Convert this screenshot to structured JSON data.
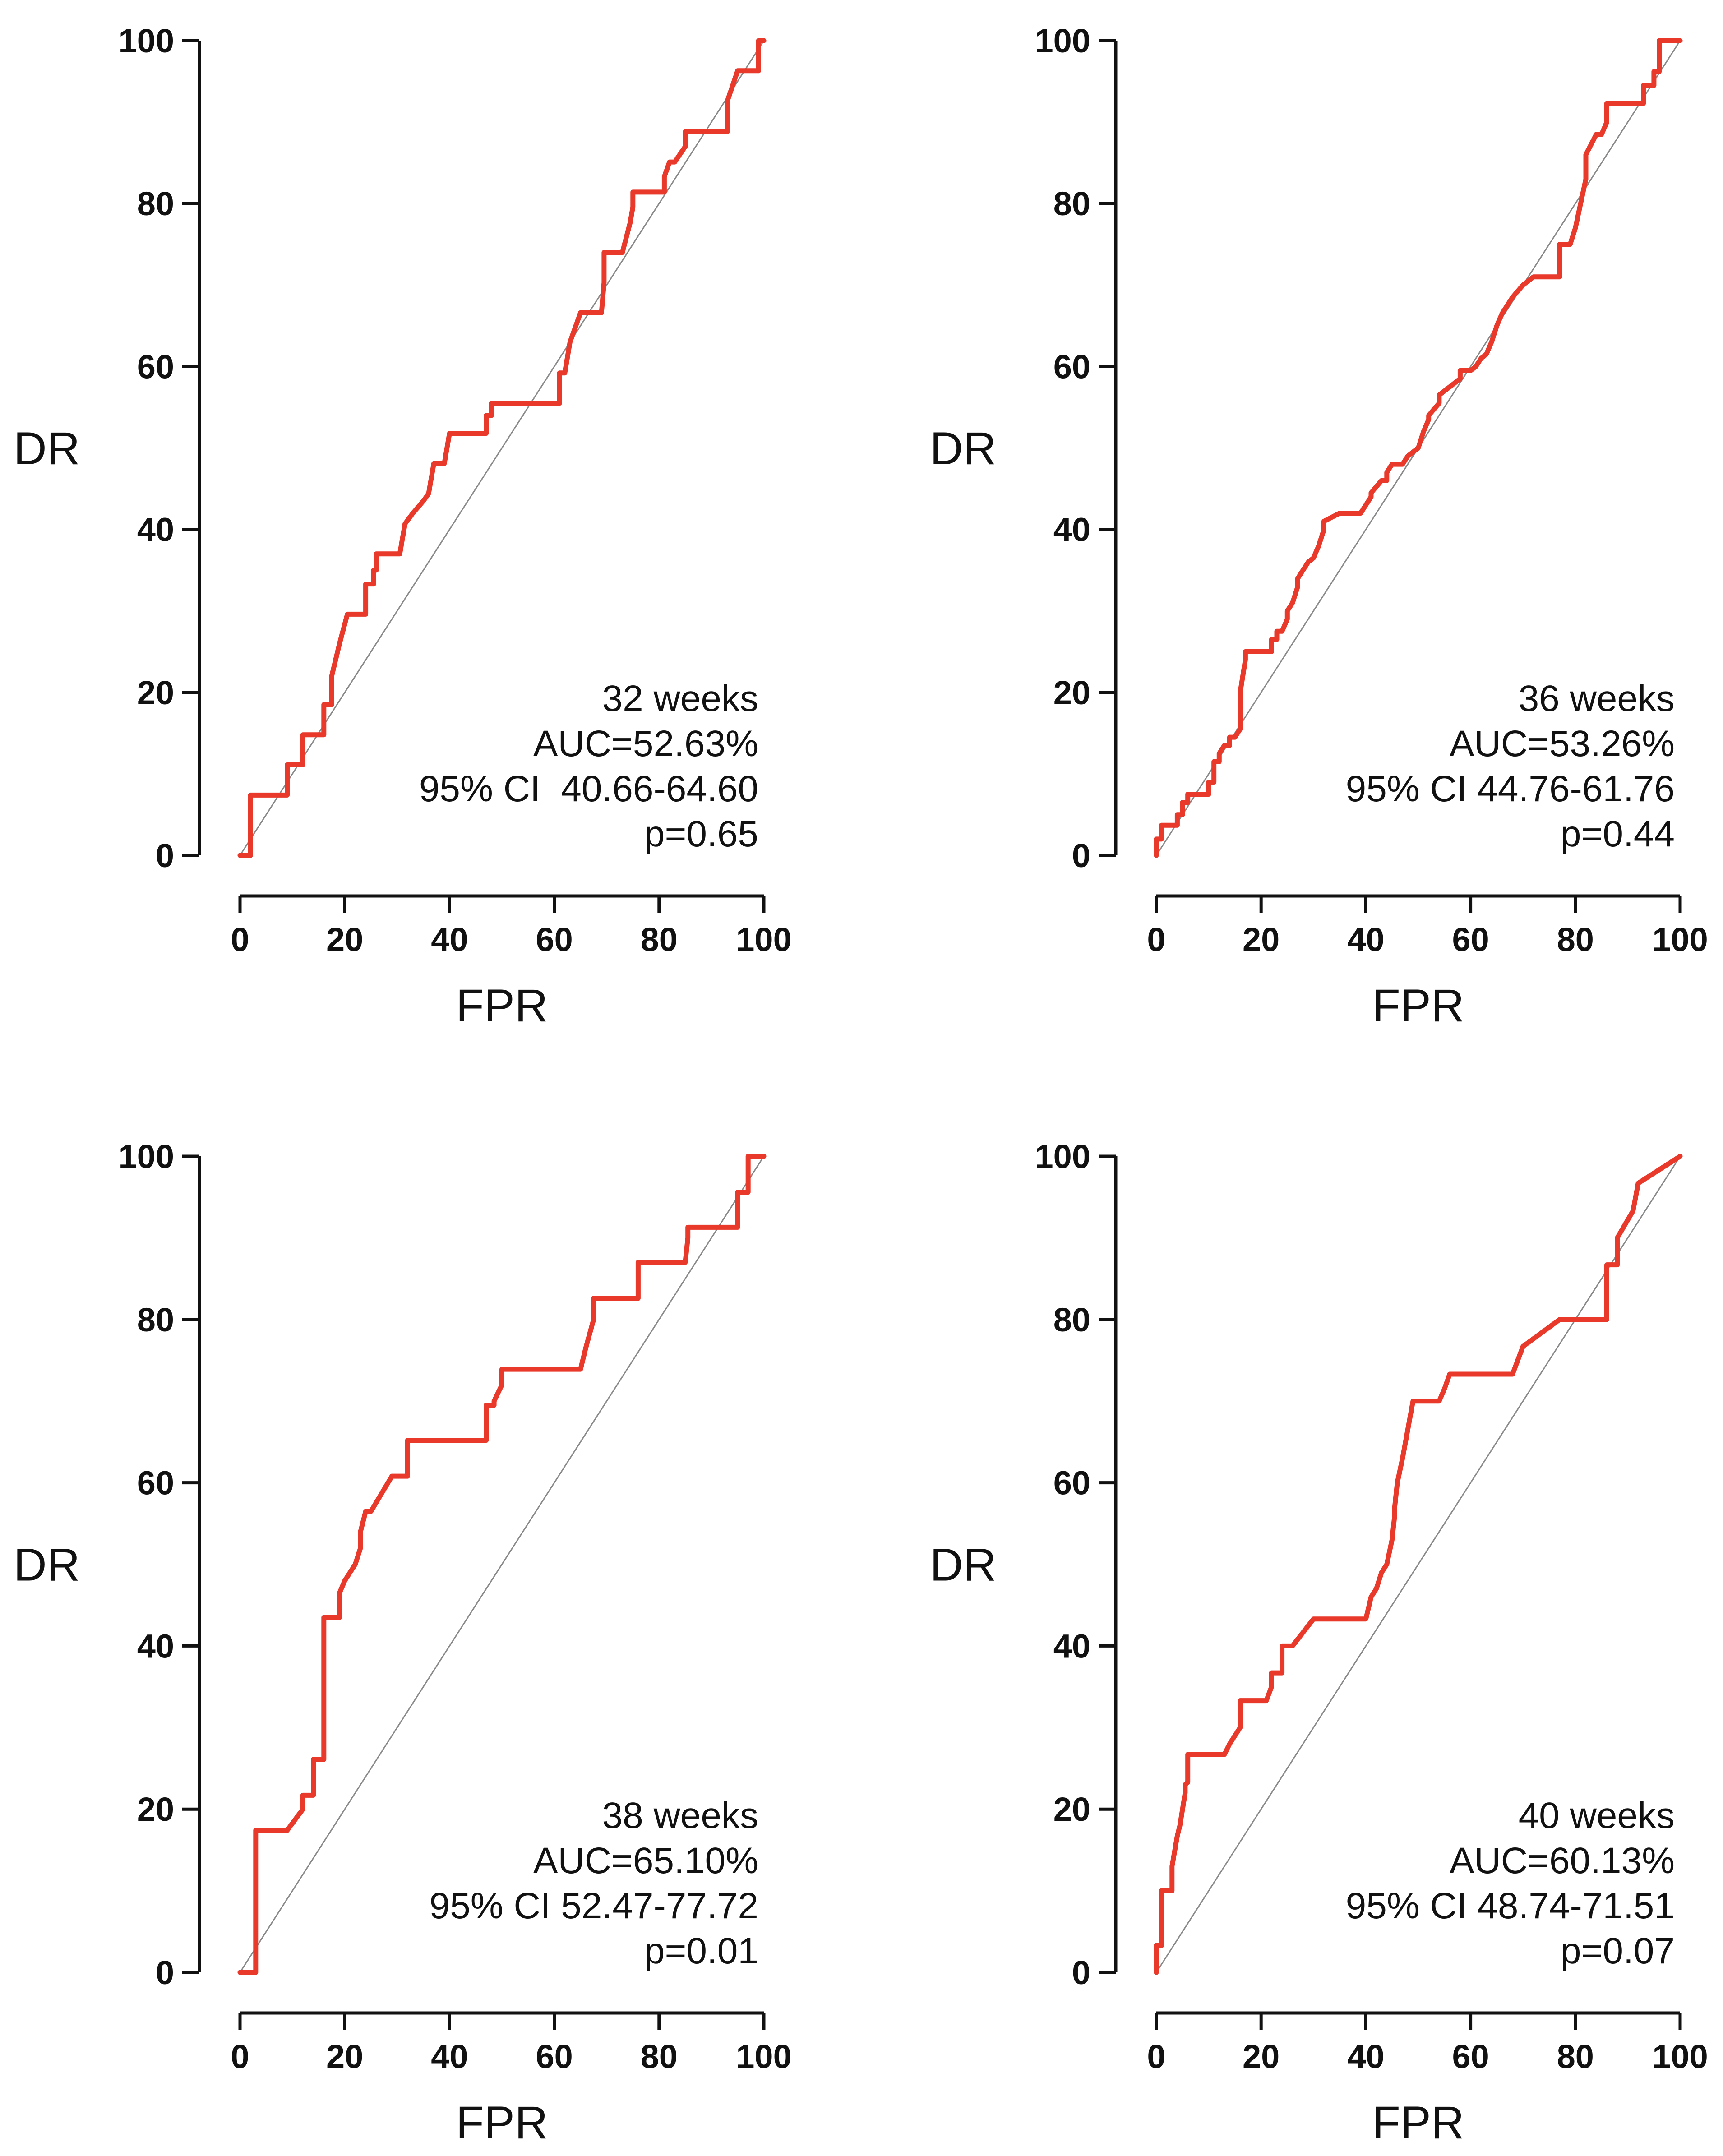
{
  "chart_data": [
    {
      "type": "line",
      "xlabel": "FPR",
      "ylabel": "DR",
      "xlim": [
        0,
        100
      ],
      "ylim": [
        0,
        100
      ],
      "xticks": [
        0,
        20,
        40,
        60,
        80,
        100
      ],
      "yticks": [
        0,
        20,
        40,
        60,
        80,
        100
      ],
      "grid": false,
      "reference_line": [
        [
          0,
          0
        ],
        [
          100,
          100
        ]
      ],
      "colors": {
        "roc": "#e8392b",
        "reference": "#8a8a8a",
        "axis": "#111111"
      },
      "annotations": [
        "32 weeks",
        "AUC=52.63%",
        "95% CI  40.66-64.60",
        "p=0.65"
      ],
      "series": [
        {
          "x": [
            0,
            2,
            2,
            9,
            9,
            12,
            12,
            16,
            16,
            17.5,
            17.5,
            19,
            20.5,
            20.5,
            24,
            24,
            25.5,
            25.5,
            26,
            26,
            30.5,
            31.5,
            33,
            35,
            36,
            37,
            37,
            39,
            40,
            40,
            47,
            47,
            48,
            48,
            60.5,
            61,
            61,
            62,
            63,
            65,
            65,
            69,
            69.5,
            69.5,
            71,
            71,
            73,
            74.5,
            74.5,
            75,
            75,
            77,
            77,
            81,
            81,
            82,
            83,
            83,
            85,
            85,
            88,
            88,
            93,
            93,
            95,
            95,
            99,
            99,
            100
          ],
          "y": [
            0,
            0,
            7.4,
            7.4,
            11.1,
            11.1,
            14.8,
            14.8,
            18.5,
            18.5,
            22,
            26,
            29.6,
            29.6,
            29.6,
            33.3,
            33.3,
            35,
            35,
            37,
            37,
            40.7,
            42,
            43.5,
            44.4,
            48.1,
            48.1,
            48.1,
            51.8,
            51.8,
            51.8,
            54,
            54,
            55.5,
            55.5,
            55.5,
            59.2,
            59.2,
            63,
            66.6,
            66.6,
            66.6,
            70.3,
            74,
            74,
            74,
            74,
            77.7,
            77.7,
            79.6,
            81.4,
            81.4,
            81.4,
            81.4,
            83.3,
            85.1,
            85.1,
            85.1,
            87,
            88.8,
            88.8,
            88.8,
            88.8,
            92.5,
            96.3,
            96.3,
            96.3,
            100,
            100
          ]
        }
      ]
    },
    {
      "type": "line",
      "xlabel": "FPR",
      "ylabel": "DR",
      "xlim": [
        0,
        100
      ],
      "ylim": [
        0,
        100
      ],
      "xticks": [
        0,
        20,
        40,
        60,
        80,
        100
      ],
      "yticks": [
        0,
        20,
        40,
        60,
        80,
        100
      ],
      "grid": false,
      "reference_line": [
        [
          0,
          0
        ],
        [
          100,
          100
        ]
      ],
      "colors": {
        "roc": "#e8392b",
        "reference": "#8a8a8a",
        "axis": "#111111"
      },
      "annotations": [
        "36 weeks",
        "AUC=53.26%",
        "95% CI 44.76-61.76",
        "p=0.44"
      ],
      "series": [
        {
          "x": [
            0,
            0,
            1,
            1,
            4,
            4,
            5,
            5,
            6,
            6,
            10,
            10,
            11,
            11,
            12,
            12,
            13,
            14,
            14,
            15,
            16,
            16,
            17,
            17,
            22,
            22,
            23,
            23,
            24,
            25,
            25,
            26,
            27,
            27,
            29,
            30,
            30,
            31,
            32,
            32,
            35,
            36,
            37,
            38,
            39,
            40,
            41,
            41,
            43,
            44,
            44,
            45,
            46,
            47,
            48,
            49,
            50,
            51,
            52,
            52,
            54,
            54,
            56,
            56,
            58,
            58,
            60,
            61,
            62,
            63,
            64,
            65,
            66,
            68,
            70,
            72,
            72,
            74,
            74,
            77,
            77,
            78,
            79,
            80,
            81,
            82,
            82,
            84,
            84,
            85,
            86,
            86,
            91,
            91,
            93,
            93,
            95,
            95,
            96,
            96,
            100
          ],
          "y": [
            0,
            2,
            2,
            3.7,
            3.7,
            5,
            5,
            6.5,
            6.5,
            7.5,
            7.5,
            9,
            9,
            11.5,
            11.5,
            12.5,
            13.5,
            13.5,
            14.5,
            14.5,
            15.5,
            20,
            24,
            25,
            25,
            26.5,
            26.5,
            27.5,
            27.5,
            29,
            30,
            31,
            33,
            34,
            36,
            36.5,
            36.5,
            38,
            40,
            41,
            42,
            42,
            42,
            42,
            42,
            43,
            44,
            44.5,
            46,
            46,
            47,
            48,
            48,
            48,
            49,
            49.5,
            50,
            52,
            53.5,
            54,
            55.5,
            56.5,
            57.5,
            57.5,
            58.5,
            59.5,
            59.5,
            60,
            61,
            61.5,
            63,
            65,
            66.5,
            68.5,
            70,
            71,
            71,
            71,
            71,
            71,
            75,
            75,
            75,
            77,
            80,
            83,
            86,
            88.5,
            88.5,
            88.5,
            90,
            92.3,
            92.3,
            92.3,
            92.3,
            94.5,
            94.5,
            96.2,
            96.2,
            100,
            100
          ]
        }
      ]
    },
    {
      "type": "line",
      "xlabel": "FPR",
      "ylabel": "DR",
      "xlim": [
        0,
        100
      ],
      "ylim": [
        0,
        100
      ],
      "xticks": [
        0,
        20,
        40,
        60,
        80,
        100
      ],
      "yticks": [
        0,
        20,
        40,
        60,
        80,
        100
      ],
      "grid": false,
      "reference_line": [
        [
          0,
          0
        ],
        [
          100,
          100
        ]
      ],
      "colors": {
        "roc": "#e8392b",
        "reference": "#8a8a8a",
        "axis": "#111111"
      },
      "annotations": [
        "38 weeks",
        "AUC=65.10%",
        "95% CI 52.47-77.72",
        "p=0.01"
      ],
      "series": [
        {
          "x": [
            0,
            3,
            3,
            9,
            9,
            12,
            12,
            14,
            14,
            16,
            16,
            16.5,
            16.5,
            19,
            19,
            20,
            22,
            23,
            23,
            24,
            25,
            29,
            29,
            32,
            32,
            47,
            47,
            48.5,
            48.5,
            50,
            50,
            65,
            66,
            67.5,
            67.5,
            75,
            75,
            76,
            76,
            85,
            85,
            85.5,
            85.5,
            95,
            95,
            96,
            96,
            97,
            97,
            100
          ],
          "y": [
            0,
            0,
            17.4,
            17.4,
            17.4,
            20,
            21.7,
            21.7,
            26.1,
            26.1,
            43.5,
            43.5,
            43.5,
            43.5,
            46.5,
            48,
            50,
            52,
            54,
            56.5,
            56.5,
            60.8,
            60.8,
            60.8,
            65.2,
            65.2,
            69.5,
            69.5,
            70,
            72,
            73.9,
            73.9,
            76.5,
            80,
            82.6,
            82.6,
            82.6,
            82.6,
            87,
            87,
            87,
            90,
            91.3,
            91.3,
            95.6,
            95.6,
            95.6,
            95.6,
            100,
            100
          ]
        }
      ]
    },
    {
      "type": "line",
      "xlabel": "FPR",
      "ylabel": "DR",
      "xlim": [
        0,
        100
      ],
      "ylim": [
        0,
        100
      ],
      "xticks": [
        0,
        20,
        40,
        60,
        80,
        100
      ],
      "yticks": [
        0,
        20,
        40,
        60,
        80,
        100
      ],
      "grid": false,
      "reference_line": [
        [
          0,
          0
        ],
        [
          100,
          100
        ]
      ],
      "colors": {
        "roc": "#e8392b",
        "reference": "#8a8a8a",
        "axis": "#111111"
      },
      "annotations": [
        "40 weeks",
        "AUC=60.13%",
        "95% CI 48.74-71.51",
        "p=0.07"
      ],
      "series": [
        {
          "x": [
            0,
            0,
            1,
            1,
            3,
            3,
            4,
            4.5,
            5,
            5.5,
            5.5,
            6,
            6,
            13,
            14,
            16,
            16,
            21,
            21,
            22,
            22,
            24,
            24,
            26,
            26,
            30,
            30,
            39,
            40,
            41,
            42,
            43,
            44,
            45,
            45.5,
            45.5,
            46,
            47,
            48,
            49,
            54,
            55,
            56,
            67,
            68,
            68,
            70,
            70,
            77,
            77,
            86,
            86,
            87,
            87,
            88,
            88,
            91,
            91,
            92,
            92,
            100
          ],
          "y": [
            0,
            3.3,
            3.3,
            10,
            10,
            13,
            16.7,
            18,
            20,
            22,
            23,
            23.3,
            26.7,
            26.7,
            28,
            30,
            33.3,
            33.3,
            33.3,
            35,
            36.7,
            36.7,
            40,
            40,
            40,
            43.3,
            43.3,
            43.3,
            43.3,
            46,
            47,
            49,
            50,
            53,
            56,
            57,
            60,
            63,
            66.5,
            70,
            70,
            71.5,
            73.3,
            73.3,
            73.3,
            73.3,
            76.7,
            76.7,
            80,
            80,
            80,
            86.7,
            86.7,
            86.7,
            86.7,
            90,
            93.3,
            93.3,
            96.7,
            96.7,
            100
          ]
        }
      ]
    }
  ]
}
